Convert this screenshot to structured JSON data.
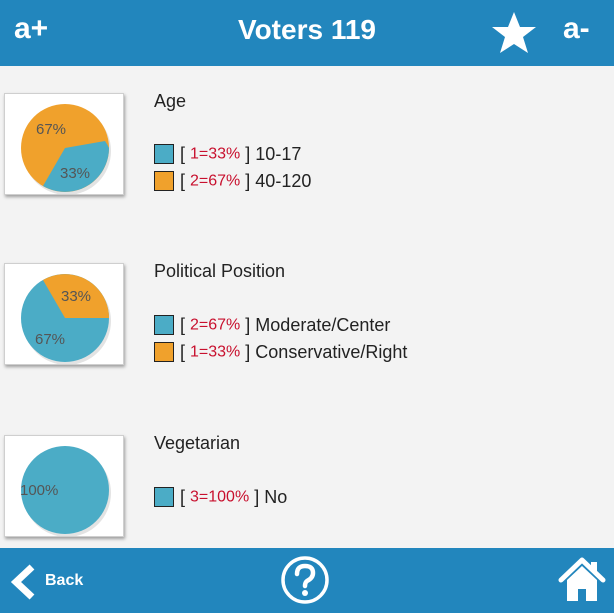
{
  "header": {
    "font_increase": "a+",
    "title": "Voters 119",
    "favorite_icon": "star-icon",
    "font_decrease": "a-"
  },
  "sections": [
    {
      "title": "Age",
      "pie_labels": [
        "67%",
        "33%"
      ],
      "legend": [
        {
          "color": "#4bacc6",
          "open": "[ ",
          "value": "1=33%",
          "close": " ] ",
          "label": "10-17"
        },
        {
          "color": "#f0a12c",
          "open": "[ ",
          "value": "2=67%",
          "close": " ] ",
          "label": "40-120"
        }
      ]
    },
    {
      "title": "Political Position",
      "pie_labels": [
        "33%",
        "67%"
      ],
      "legend": [
        {
          "color": "#4bacc6",
          "open": "[ ",
          "value": "2=67%",
          "close": " ] ",
          "label": "Moderate/Center"
        },
        {
          "color": "#f0a12c",
          "open": "[ ",
          "value": "1=33%",
          "close": " ] ",
          "label": "Conservative/Right"
        }
      ]
    },
    {
      "title": "Vegetarian",
      "pie_labels": [
        "100%"
      ],
      "legend": [
        {
          "color": "#4bacc6",
          "open": "[ ",
          "value": "3=100%",
          "close": " ] ",
          "label": "No"
        }
      ]
    }
  ],
  "footer": {
    "back_label": "Back",
    "back_icon": "chevron-left-icon",
    "help_icon": "question-icon",
    "home_icon": "home-icon"
  },
  "colors": {
    "bar": "#2286bd",
    "blue_slice": "#4bacc6",
    "orange_slice": "#f0a12c",
    "value_text": "#c8102e"
  }
}
